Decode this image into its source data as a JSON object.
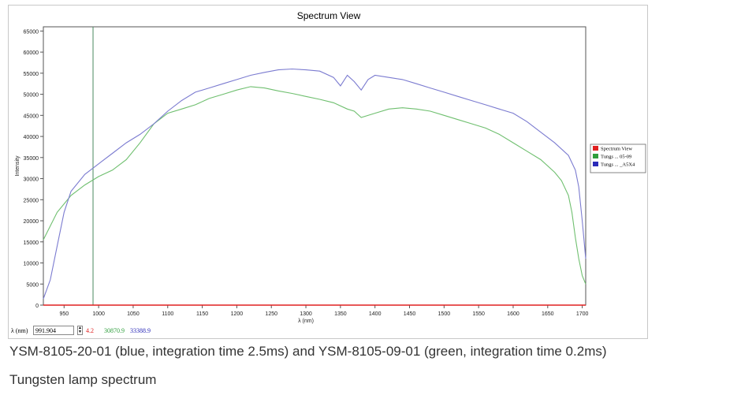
{
  "chart_data": {
    "type": "line",
    "title": "Spectrum View",
    "xlabel": "λ (nm)",
    "ylabel": "Intensity",
    "xlim": [
      920,
      1705
    ],
    "ylim": [
      0,
      66000
    ],
    "x_ticks": [
      950,
      1000,
      1050,
      1100,
      1150,
      1200,
      1250,
      1300,
      1350,
      1400,
      1450,
      1500,
      1550,
      1600,
      1650,
      1700
    ],
    "y_ticks": [
      0,
      5000,
      10000,
      15000,
      20000,
      25000,
      30000,
      35000,
      40000,
      45000,
      50000,
      55000,
      60000,
      65000
    ],
    "marker_x": 991.904,
    "legend_position": "right",
    "series": [
      {
        "name": "Spectrum View",
        "color": "#e02020",
        "x": [
          920,
          1705
        ],
        "y": [
          0,
          0
        ]
      },
      {
        "name": "Tungs ... 05-09",
        "color": "#2e9e3c",
        "x": [
          920,
          940,
          960,
          980,
          1000,
          1020,
          1040,
          1060,
          1080,
          1100,
          1120,
          1140,
          1160,
          1180,
          1200,
          1220,
          1240,
          1260,
          1280,
          1300,
          1320,
          1340,
          1360,
          1370,
          1380,
          1400,
          1420,
          1440,
          1460,
          1480,
          1500,
          1520,
          1540,
          1560,
          1580,
          1600,
          1620,
          1640,
          1660,
          1670,
          1680,
          1685,
          1690,
          1695,
          1700,
          1705
        ],
        "y": [
          15500,
          22000,
          26000,
          28500,
          30500,
          32000,
          34500,
          38500,
          43000,
          45500,
          46500,
          47500,
          49000,
          50000,
          51000,
          51800,
          51500,
          50800,
          50200,
          49500,
          48800,
          48000,
          46500,
          46000,
          44500,
          45500,
          46500,
          46800,
          46500,
          46000,
          45000,
          44000,
          43000,
          42000,
          40500,
          38500,
          36500,
          34500,
          31500,
          29500,
          26000,
          22000,
          16000,
          11000,
          7000,
          5000
        ]
      },
      {
        "name": "Tungs ... _A5X4",
        "color": "#2a2ab8",
        "x": [
          920,
          930,
          940,
          950,
          960,
          980,
          1000,
          1020,
          1040,
          1060,
          1080,
          1100,
          1120,
          1140,
          1160,
          1180,
          1200,
          1220,
          1240,
          1260,
          1280,
          1300,
          1320,
          1340,
          1350,
          1360,
          1370,
          1380,
          1390,
          1400,
          1420,
          1440,
          1460,
          1480,
          1500,
          1520,
          1540,
          1560,
          1580,
          1600,
          1620,
          1640,
          1660,
          1680,
          1690,
          1695,
          1700,
          1705
        ],
        "y": [
          1500,
          6000,
          14000,
          22000,
          27000,
          31000,
          33500,
          36000,
          38500,
          40500,
          43000,
          46000,
          48500,
          50500,
          51500,
          52500,
          53500,
          54500,
          55200,
          55800,
          56000,
          55800,
          55500,
          54000,
          52000,
          54500,
          53000,
          51000,
          53500,
          54500,
          54000,
          53500,
          52500,
          51500,
          50500,
          49500,
          48500,
          47500,
          46500,
          45500,
          43500,
          41000,
          38500,
          35500,
          32000,
          28000,
          20000,
          11000
        ]
      }
    ]
  },
  "status_bar": {
    "wl_label": "λ (nm)",
    "wl_value": "991.904",
    "red_value": "4.2",
    "green_value": "30870.9",
    "blue_value": "33388.9"
  },
  "caption": {
    "line1": "YSM-8105-20-01 (blue, integration time 2.5ms) and YSM-8105-09-01 (green, integration time 0.2ms)",
    "line2": "Tungsten lamp spectrum"
  }
}
